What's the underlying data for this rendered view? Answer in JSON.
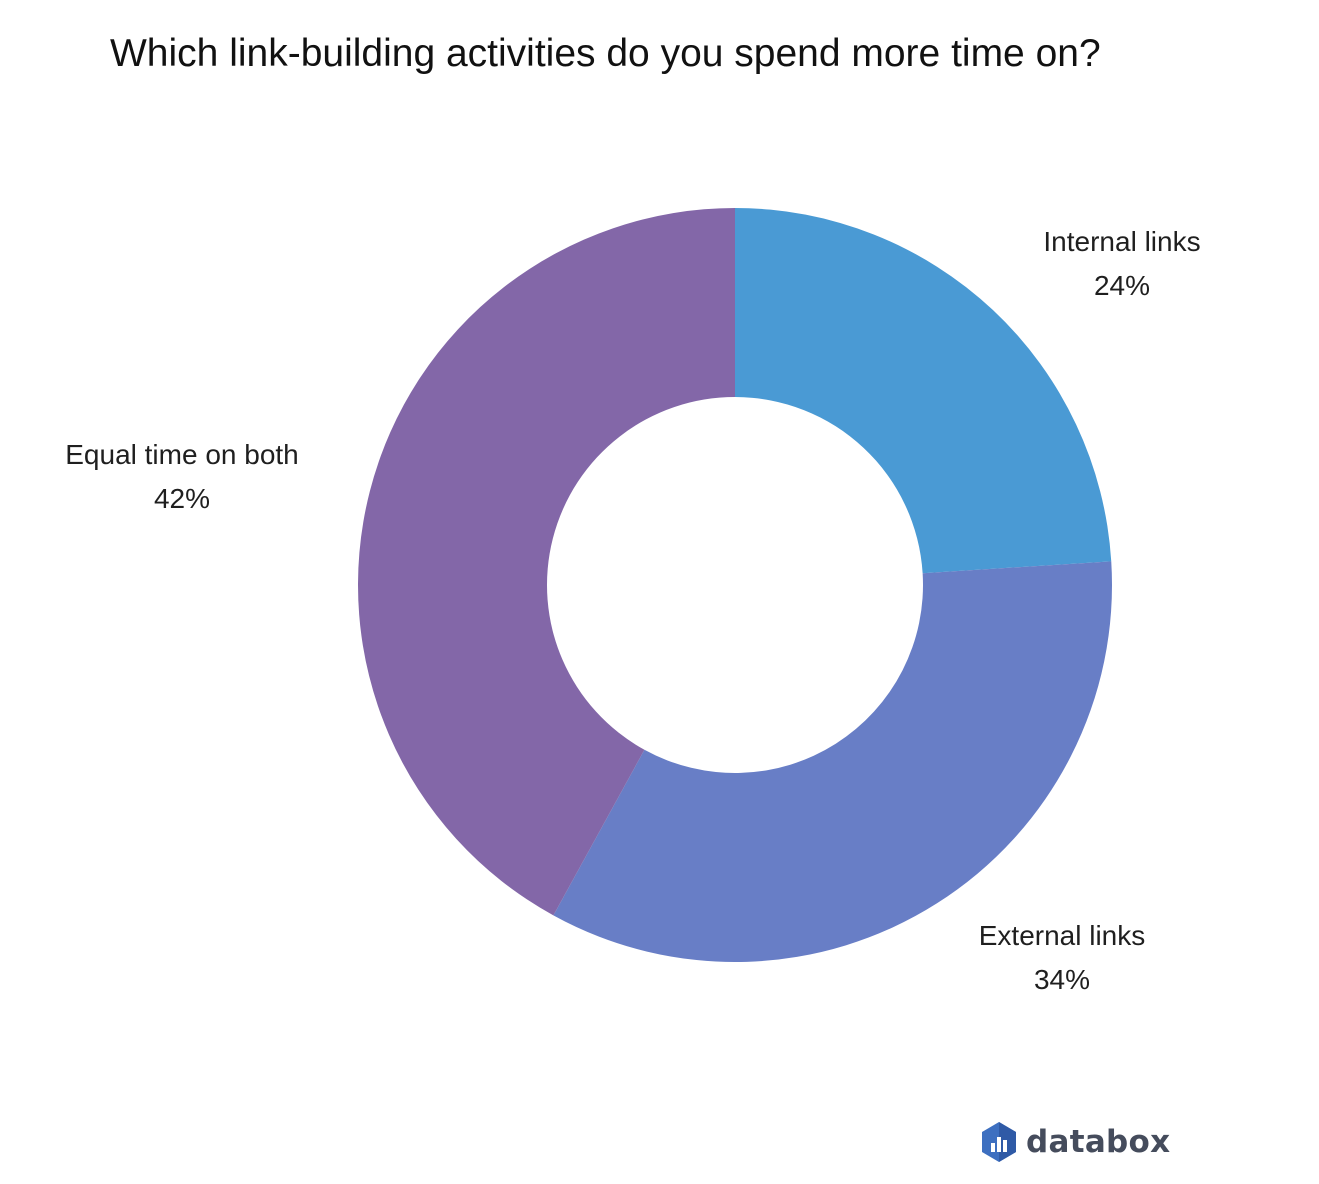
{
  "chart_data": {
    "type": "pie",
    "variant": "donut",
    "title": "Which link-building activities do you spend more time on?",
    "slices": [
      {
        "label": "Internal links",
        "value": 24,
        "value_label": "24%",
        "color": "#4a9ad4"
      },
      {
        "label": "External links",
        "value": 34,
        "value_label": "34%",
        "color": "#687ec6"
      },
      {
        "label": "Equal time on both",
        "value": 42,
        "value_label": "42%",
        "color": "#8367a8"
      }
    ],
    "start": "12 o'clock",
    "direction": "clockwise"
  },
  "brand": {
    "name": "databox",
    "icon": "databox-logo-icon",
    "color": "#454c5c"
  }
}
